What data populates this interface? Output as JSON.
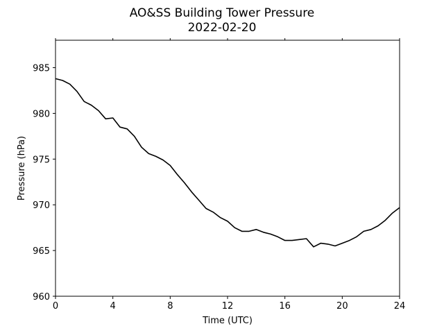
{
  "chart_data": {
    "type": "line",
    "title": "AO&SS Building Tower Pressure",
    "subtitle": "2022-02-20",
    "xlabel": "Time (UTC)",
    "ylabel": "Pressure (hPa)",
    "xlim": [
      0,
      24
    ],
    "ylim": [
      960,
      988
    ],
    "xticks": [
      "0",
      "4",
      "8",
      "12",
      "16",
      "20",
      "24"
    ],
    "yticks": [
      "960",
      "965",
      "970",
      "975",
      "980",
      "985"
    ],
    "grid": false,
    "legend": "none",
    "line_color": "#000000",
    "series": [
      {
        "x": [
          0,
          0.5,
          1,
          1.5,
          2,
          2.5,
          3,
          3.5,
          4,
          4.5,
          5,
          5.5,
          6,
          6.5,
          7,
          7.5,
          8,
          8.5,
          9,
          9.5,
          10,
          10.5,
          11,
          11.5,
          12,
          12.5,
          13,
          13.5,
          14,
          14.5,
          15,
          15.5,
          16,
          16.5,
          17,
          17.5,
          18,
          18.5,
          19,
          19.5,
          20,
          20.5,
          21,
          21.5,
          22,
          22.5,
          23,
          23.5,
          24
        ],
        "y": [
          983.8,
          983.6,
          983.2,
          982.4,
          981.3,
          980.9,
          980.3,
          979.4,
          979.5,
          978.5,
          978.3,
          977.5,
          976.3,
          975.6,
          975.3,
          974.9,
          974.3,
          973.3,
          972.4,
          971.4,
          970.5,
          969.6,
          969.2,
          968.6,
          968.2,
          967.5,
          967.1,
          967.1,
          967.3,
          967.0,
          966.8,
          966.5,
          966.1,
          966.1,
          966.2,
          966.3,
          965.4,
          965.8,
          965.7,
          965.5,
          965.8,
          966.1,
          966.5,
          967.1,
          967.3,
          967.7,
          968.3,
          969.1,
          969.7
        ]
      }
    ]
  }
}
